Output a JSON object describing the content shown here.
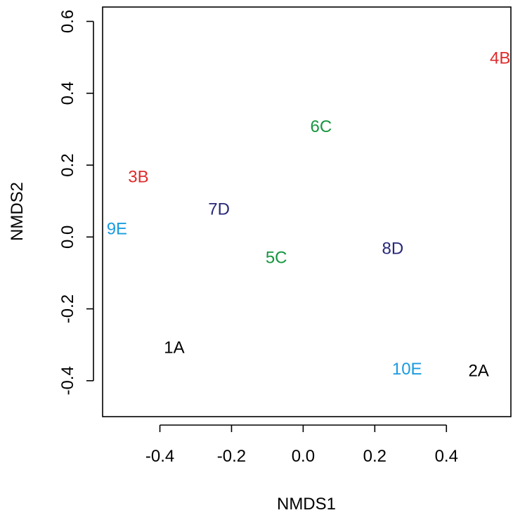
{
  "chart_data": {
    "type": "scatter",
    "title": "",
    "xlabel": "NMDS1",
    "ylabel": "NMDS2",
    "xlim": [
      -0.56,
      0.58
    ],
    "ylim": [
      -0.5,
      0.64
    ],
    "xticks": [
      -0.4,
      -0.2,
      0.0,
      0.2,
      0.4
    ],
    "yticks": [
      -0.4,
      -0.2,
      0.0,
      0.2,
      0.4,
      0.6
    ],
    "xtick_labels": [
      "-0.4",
      "-0.2",
      "0.0",
      "0.2",
      "0.4"
    ],
    "ytick_labels": [
      "-0.4",
      "-0.2",
      "0.0",
      "0.2",
      "0.4",
      "0.6"
    ],
    "grid": false,
    "legend": "none",
    "points": [
      {
        "label": "1A",
        "x": -0.36,
        "y": -0.305,
        "color": "#000000"
      },
      {
        "label": "2A",
        "x": 0.49,
        "y": -0.37,
        "color": "#000000"
      },
      {
        "label": "3B",
        "x": -0.46,
        "y": 0.17,
        "color": "#e02b2b"
      },
      {
        "label": "4B",
        "x": 0.55,
        "y": 0.5,
        "color": "#e02b2b"
      },
      {
        "label": "5C",
        "x": -0.075,
        "y": -0.055,
        "color": "#16963f"
      },
      {
        "label": "6C",
        "x": 0.05,
        "y": 0.31,
        "color": "#16963f"
      },
      {
        "label": "7D",
        "x": -0.235,
        "y": 0.08,
        "color": "#28287a"
      },
      {
        "label": "8D",
        "x": 0.25,
        "y": -0.03,
        "color": "#28287a"
      },
      {
        "label": "9E",
        "x": -0.52,
        "y": 0.025,
        "color": "#1a9be0"
      },
      {
        "label": "10E",
        "x": 0.29,
        "y": -0.365,
        "color": "#1a9be0"
      }
    ]
  }
}
